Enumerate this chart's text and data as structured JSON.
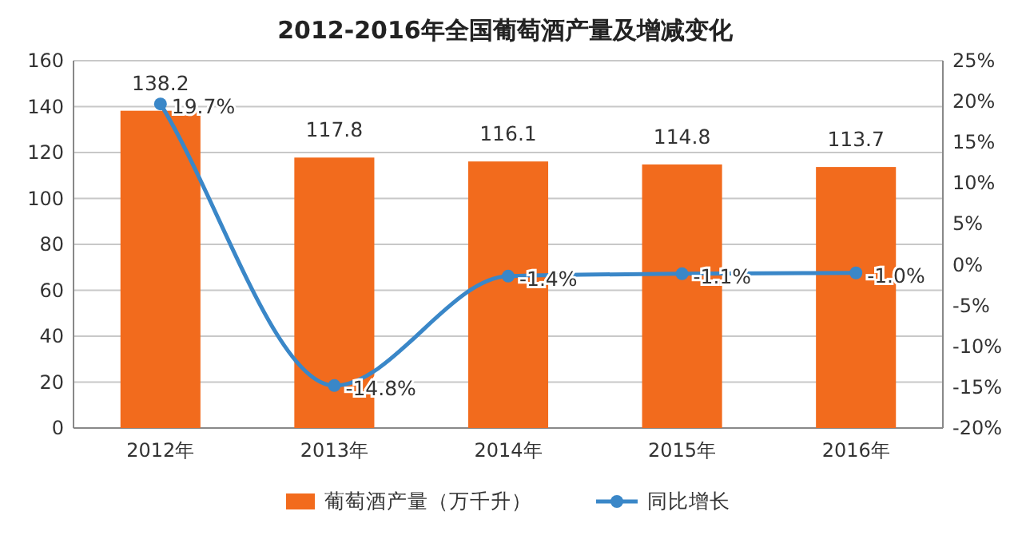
{
  "chart_data": {
    "type": "bar",
    "title": "2012-2016年全国葡萄酒产量及增减变化",
    "categories": [
      "2012年",
      "2013年",
      "2014年",
      "2015年",
      "2016年"
    ],
    "series": [
      {
        "name": "葡萄酒产量（万千升）",
        "color": "#f26b1d",
        "values": [
          138.2,
          117.8,
          116.1,
          114.8,
          113.7
        ],
        "data_labels": true
      },
      {
        "name": "同比增长",
        "type": "line",
        "axis": "y2",
        "color": "#3a87c8",
        "marker": "circle",
        "values": [
          19.7,
          -14.8,
          -1.4,
          -1.1,
          -1.0
        ],
        "value_labels": [
          "19.7%",
          "-14.8%",
          "-1.4%",
          "-1.1%",
          "-1.0%"
        ]
      }
    ],
    "ylim": [
      0,
      160
    ],
    "yticks": [
      0,
      20,
      40,
      60,
      80,
      100,
      120,
      140,
      160
    ],
    "y2lim": [
      -20,
      25
    ],
    "y2ticks": [
      {
        "value": -20,
        "label": "-20%"
      },
      {
        "value": -15,
        "label": "-15%"
      },
      {
        "value": -10,
        "label": "-10%"
      },
      {
        "value": -5,
        "label": "-5%"
      },
      {
        "value": 0,
        "label": "0%"
      },
      {
        "value": 5,
        "label": "5%"
      },
      {
        "value": 10,
        "label": "10%"
      },
      {
        "value": 15,
        "label": "15%"
      },
      {
        "value": 20,
        "label": "20%"
      },
      {
        "value": 25,
        "label": "25%"
      }
    ],
    "grid": "y",
    "legend": "bottom"
  }
}
